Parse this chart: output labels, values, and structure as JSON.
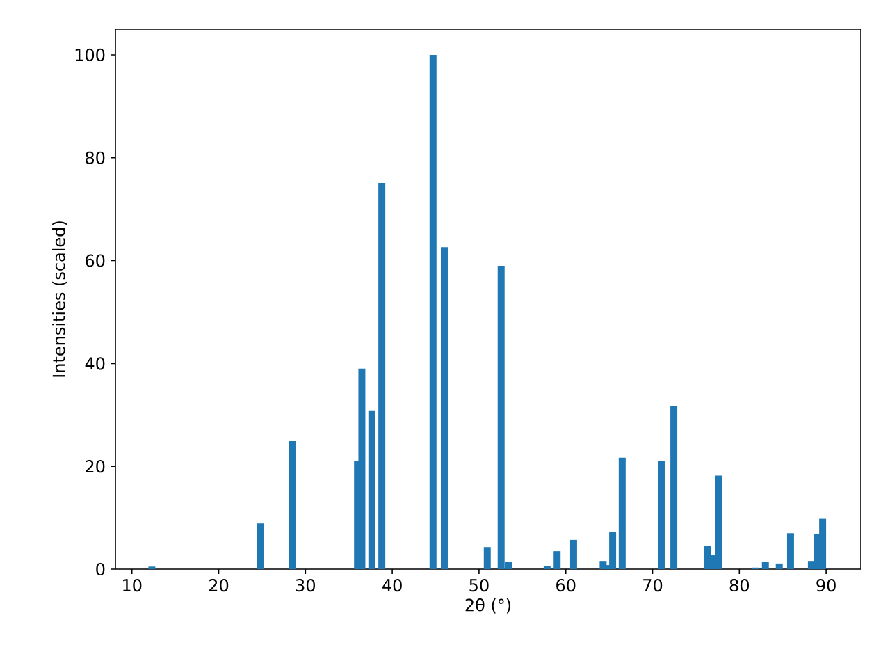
{
  "chart_data": {
    "type": "bar",
    "xlabel": "2θ (°)",
    "ylabel": "Intensities (scaled)",
    "series": [
      {
        "color": "#1f77b4",
        "x": [
          12.3,
          24.8,
          28.5,
          36.0,
          36.5,
          37.65,
          38.8,
          44.7,
          46.0,
          50.95,
          52.55,
          53.4,
          57.85,
          59.0,
          60.9,
          64.3,
          64.7,
          65.4,
          66.5,
          71.0,
          72.45,
          76.3,
          77.1,
          77.6,
          81.9,
          83.0,
          84.6,
          85.9,
          88.3,
          88.95,
          89.6
        ],
        "values": [
          0.5,
          8.9,
          24.9,
          21.1,
          39.0,
          30.9,
          75.1,
          100,
          62.6,
          4.3,
          59.0,
          1.4,
          0.6,
          3.5,
          5.7,
          1.6,
          0.8,
          7.3,
          21.7,
          21.1,
          31.7,
          4.6,
          2.7,
          18.2,
          0.3,
          1.4,
          1.1,
          7.0,
          1.6,
          6.8,
          9.8
        ]
      }
    ],
    "xlim": [
      8.1,
      94.0
    ],
    "ylim": [
      0,
      105
    ],
    "xticks": [
      10,
      20,
      30,
      40,
      50,
      60,
      70,
      80,
      90
    ],
    "yticks": [
      0,
      20,
      40,
      60,
      80,
      100
    ],
    "grid": false
  }
}
